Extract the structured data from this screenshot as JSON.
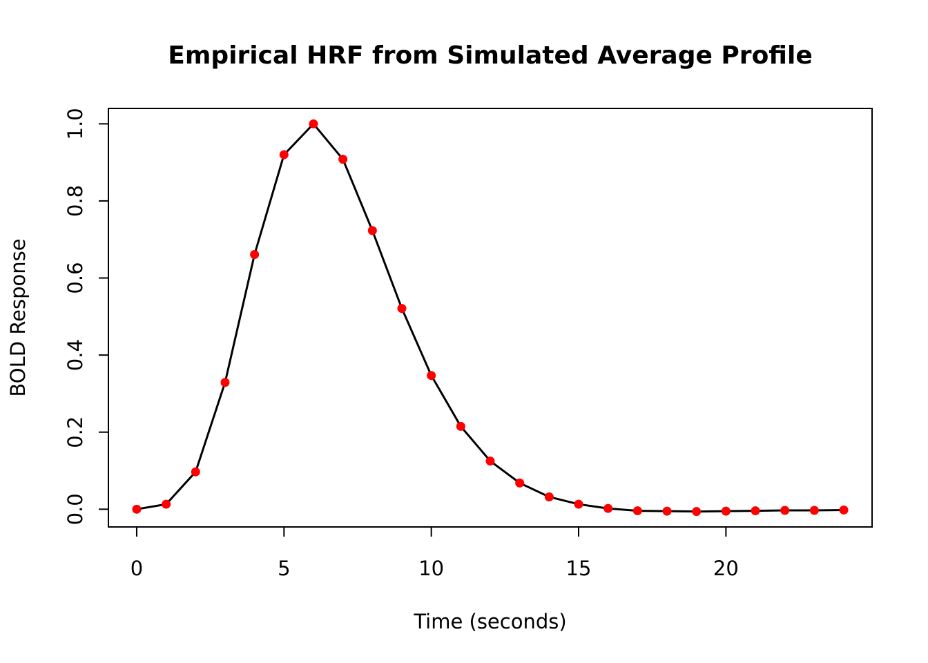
{
  "chart_data": {
    "type": "line",
    "title": "Empirical HRF from Simulated Average Profile",
    "x_label": "Time (seconds)",
    "y_label": "BOLD Response",
    "x": [
      0,
      1,
      2,
      3,
      4,
      5,
      6,
      7,
      8,
      9,
      10,
      11,
      12,
      13,
      14,
      15,
      16,
      17,
      18,
      19,
      20,
      21,
      22,
      23,
      24
    ],
    "series": [
      {
        "line_color": "#000000",
        "color": "#ff0000",
        "values": [
          0,
          0.013,
          0.097,
          0.329,
          0.661,
          0.92,
          1.0,
          0.908,
          0.723,
          0.521,
          0.347,
          0.215,
          0.125,
          0.068,
          0.032,
          0.013,
          0.002,
          -0.004,
          -0.005,
          -0.006,
          -0.005,
          -0.004,
          -0.003,
          -0.003,
          -0.002
        ]
      }
    ],
    "xlim": [
      -0.96,
      24.96
    ],
    "ylim": [
      -0.046,
      1.04
    ],
    "xticks": [
      0,
      5,
      10,
      15,
      20
    ],
    "yticks": [
      {
        "value": 0,
        "label": "0.0"
      },
      0.2,
      0.4,
      0.6,
      0.8,
      {
        "value": 1,
        "label": "1.0"
      }
    ],
    "grid": false
  }
}
